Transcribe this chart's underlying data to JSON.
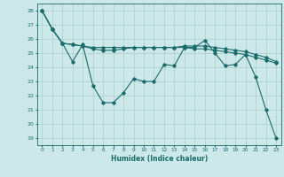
{
  "xlabel": "Humidex (Indice chaleur)",
  "background_color": "#cde8e8",
  "grid_color": "#b0d0d0",
  "line_color": "#1a6b6b",
  "xlim": [
    -0.5,
    23.5
  ],
  "ylim": [
    18.5,
    28.5
  ],
  "xticks": [
    0,
    1,
    2,
    3,
    4,
    5,
    6,
    7,
    8,
    9,
    10,
    11,
    12,
    13,
    14,
    15,
    16,
    17,
    18,
    19,
    20,
    21,
    22,
    23
  ],
  "yticks": [
    19,
    20,
    21,
    22,
    23,
    24,
    25,
    26,
    27,
    28
  ],
  "series": [
    [
      28.0,
      26.7,
      25.7,
      24.4,
      25.6,
      22.7,
      21.5,
      21.5,
      22.2,
      23.2,
      23.0,
      23.0,
      24.2,
      24.1,
      25.4,
      25.4,
      25.9,
      25.0,
      24.1,
      24.2,
      24.9,
      23.3,
      21.0,
      19.0
    ],
    [
      28.0,
      26.7,
      25.7,
      25.6,
      25.5,
      25.3,
      25.2,
      25.2,
      25.3,
      25.4,
      25.4,
      25.4,
      25.4,
      25.4,
      25.5,
      25.5,
      25.5,
      25.4,
      25.3,
      25.2,
      25.1,
      24.9,
      24.7,
      24.4
    ],
    [
      28.0,
      26.7,
      25.7,
      25.6,
      25.5,
      25.4,
      25.4,
      25.4,
      25.4,
      25.4,
      25.4,
      25.4,
      25.4,
      25.4,
      25.4,
      25.3,
      25.3,
      25.2,
      25.1,
      25.0,
      24.9,
      24.7,
      24.5,
      24.3
    ]
  ]
}
